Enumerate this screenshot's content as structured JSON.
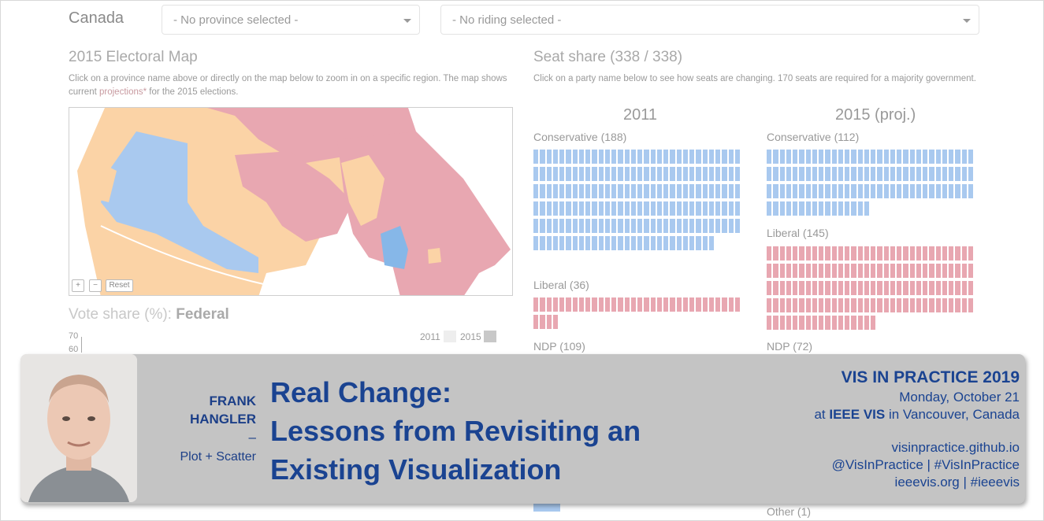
{
  "header": {
    "country": "Canada",
    "province_select": {
      "value": "- No province selected -"
    },
    "riding_select": {
      "value": "- No riding selected -"
    }
  },
  "map_section": {
    "title": "2015 Electoral Map",
    "description_pre": "Click on a province name above or directly on the map below to zoom in on a specific region. The map shows current ",
    "description_link": "projections*",
    "description_post": " for the 2015 elections.",
    "zoom_in": "+",
    "zoom_out": "−",
    "reset": "Reset",
    "colors": {
      "conservative": "#a9c9ef",
      "liberal": "#e8a7b1",
      "ndp": "#fbd3a6",
      "bloc": "#86b7e8"
    }
  },
  "vote_share": {
    "title": "Vote share (%): ",
    "scope": "Federal",
    "ticks": [
      "70",
      "60"
    ],
    "legend": [
      {
        "label": "2011",
        "color": "#eeeeee"
      },
      {
        "label": "2015",
        "color": "#c8c8c8"
      }
    ]
  },
  "seat_share": {
    "title": "Seat share (338 / 338)",
    "description": "Click on a party name below to see how seats are changing. 170 seats are required for a majority government.",
    "columns": [
      {
        "year": "2011",
        "parties": [
          {
            "label": "Conservative (188)",
            "seats": 188,
            "color": "#a9c9ef"
          },
          {
            "label": "Liberal (36)",
            "seats": 36,
            "color": "#e8a7b1"
          },
          {
            "label": "NDP (109)"
          }
        ]
      },
      {
        "year": "2015 (proj.)",
        "parties": [
          {
            "label": "Conservative (112)",
            "seats": 112,
            "color": "#a9c9ef"
          },
          {
            "label": "Liberal (145)",
            "seats": 145,
            "color": "#e8a7b1"
          },
          {
            "label": "NDP (72)"
          }
        ]
      }
    ],
    "other_label": "Other (1)"
  },
  "banner": {
    "speaker_first": "FRANK",
    "speaker_last": "HANGLER",
    "dash": "–",
    "org": "Plot + Scatter",
    "talk_line1": "Real Change:",
    "talk_line2": "Lessons from Revisiting an",
    "talk_line3": "Existing Visualization",
    "event_title": "VIS IN PRACTICE 2019",
    "event_date": "Monday, October 21",
    "event_at": "at ",
    "event_conf": "IEEE VIS",
    "event_place": " in Vancouver, Canada",
    "link1": "visinpractice.github.io",
    "link2": "@VisInPractice | #VisInPractice",
    "link3": "ieeevis.org | #ieeevis",
    "accent": "#1a4391"
  }
}
